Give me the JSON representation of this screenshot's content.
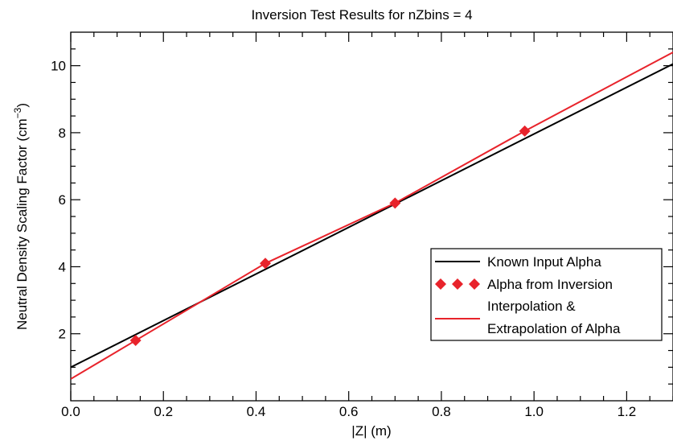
{
  "chart_data": {
    "type": "line",
    "title": "Inversion Test Results for nZbins = 4",
    "xlabel": "|Z| (m)",
    "ylabel_main": "Neutral Density Scaling Factor (cm",
    "ylabel_sup": "−3",
    "ylabel_close": ")",
    "xlim": [
      0.0,
      1.3
    ],
    "ylim": [
      0.0,
      11.0
    ],
    "x_ticks": [
      0.0,
      0.2,
      0.4,
      0.6,
      0.8,
      1.0,
      1.2
    ],
    "x_tick_labels": [
      "0.0",
      "0.2",
      "0.4",
      "0.6",
      "0.8",
      "1.0",
      "1.2"
    ],
    "y_ticks": [
      2,
      4,
      6,
      8,
      10
    ],
    "y_tick_labels": [
      "2",
      "4",
      "6",
      "8",
      "10"
    ],
    "grid": false,
    "legend_position": "center-right",
    "series": [
      {
        "name": "Known Input Alpha",
        "kind": "line",
        "color": "#000000",
        "x": [
          0.0,
          1.3
        ],
        "y": [
          1.0,
          10.05
        ]
      },
      {
        "name": "Alpha from Inversion",
        "kind": "scatter",
        "marker": "diamond",
        "color": "#e8232b",
        "x": [
          0.14,
          0.42,
          0.7,
          0.98
        ],
        "y": [
          1.8,
          4.1,
          5.9,
          8.05
        ]
      },
      {
        "name": "Interpolation & Extrapolation of Alpha",
        "name_lines": [
          "Interpolation &",
          "Extrapolation of Alpha"
        ],
        "kind": "line",
        "color": "#e8232b",
        "x": [
          0.0,
          0.14,
          0.42,
          0.7,
          0.98,
          1.3
        ],
        "y": [
          0.65,
          1.8,
          4.1,
          5.9,
          8.05,
          10.4
        ]
      }
    ]
  }
}
